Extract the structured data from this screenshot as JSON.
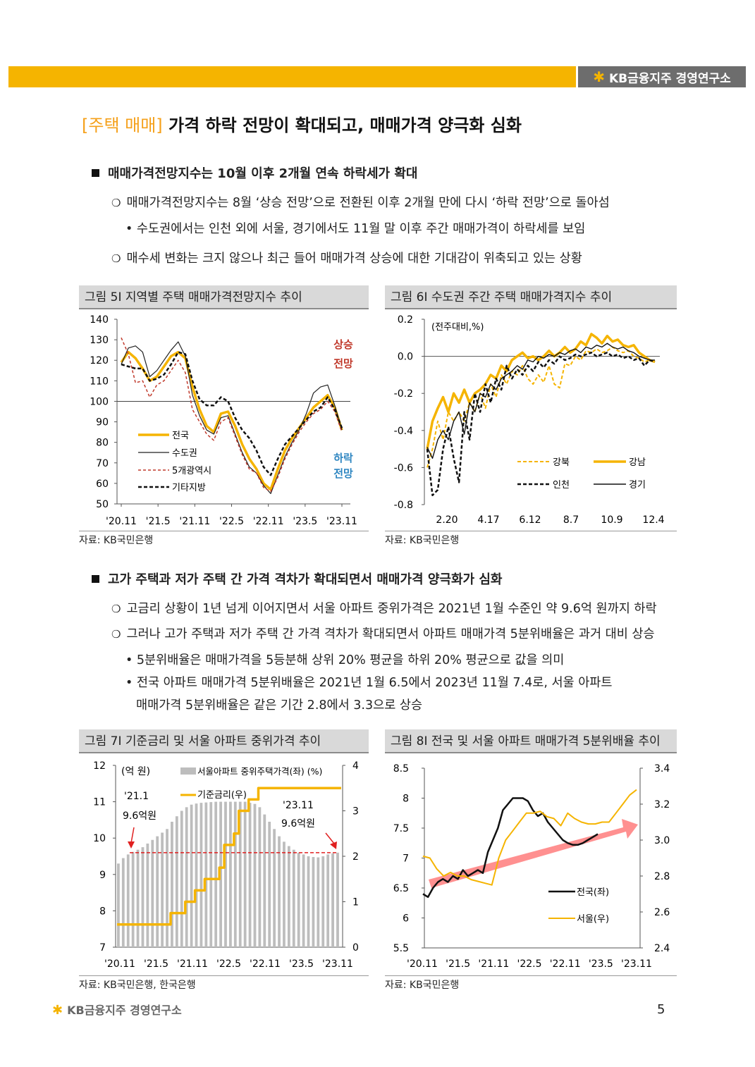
{
  "header": {
    "logo": "KB금융지주 경영연구소"
  },
  "title": {
    "tag": "[주택 매매]",
    "text": "가격 하락 전망이 확대되고, 매매가격 양극화 심화"
  },
  "section1": {
    "heading": "매매가격전망지수는 10월 이후 2개월 연속 하락세가 확대",
    "b1": "매매가격전망지수는 8월 ‘상승 전망’으로 전환된 이후 2개월 만에 다시 ‘하락 전망’으로 돌아섬",
    "b1_sub": "• 수도권에서는 인천 외에 서울, 경기에서도 11월 말 이후 주간 매매가격이 하락세를 보임",
    "b2": "매수세 변화는 크지 않으나 최근 들어 매매가격 상승에 대한 기대감이 위축되고 있는 상황"
  },
  "section2": {
    "heading": "고가 주택과 저가 주택 간 가격 격차가 확대되면서 매매가격 양극화가 심화",
    "b1": "고금리 상황이 1년 넘게 이어지면서 서울 아파트 중위가격은 2021년 1월 수준인 약 9.6억 원까지 하락",
    "b2": "그러나 고가 주택과 저가 주택 간 가격 격차가 확대되면서 아파트 매매가격 5분위배율은 과거 대비 상승",
    "sub1": "• 5분위배율은 매매가격을 5등분해 상위 20% 평균을 하위 20% 평균으로 값을 의미",
    "sub2": "• 전국 아파트 매매가격 5분위배율은 2021년 1월 6.5에서 2023년 11월 7.4로, 서울 아파트",
    "sub2b": "매매가격 5분위배율은 같은 기간 2.8에서 3.3으로 상승"
  },
  "figures": {
    "f5": {
      "caption": "그림 5I 지역별 주택 매매가격전망지수 추이",
      "source": "자료: KB국민은행"
    },
    "f6": {
      "caption": "그림 6I 수도권 주간 주택 매매가격지수 추이",
      "source": "자료: KB국민은행"
    },
    "f7": {
      "caption": "그림 7I 기준금리 및 서울 아파트 중위가격 추이",
      "source": "자료: KB국민은행, 한국은행"
    },
    "f8": {
      "caption": "그림 8I 전국 및 서울 아파트 매매가격 5분위배율 추이",
      "source": "자료: KB국민은행"
    }
  },
  "footer": {
    "logo": "KB금융지주 경영연구소",
    "page": "5"
  },
  "chart_data": [
    {
      "id": "f5",
      "type": "line",
      "title": "지역별 주택 매매가격전망지수 추이",
      "xlabels": [
        "'20.11",
        "'21.5",
        "'21.11",
        "'22.5",
        "'22.11",
        "'23.5",
        "'23.11"
      ],
      "ylim": [
        50,
        140
      ],
      "yticks": [
        50,
        60,
        70,
        80,
        90,
        100,
        110,
        120,
        130,
        140
      ],
      "refline": 100,
      "annotations": {
        "up1": "상승",
        "up2": "전망",
        "down1": "하락",
        "down2": "전망"
      },
      "colors": {
        "전국": "#f5b400",
        "수도권": "#222222",
        "5개광역시": "#c0392b",
        "기타지방": "#111111",
        "up": "#c0392b",
        "down": "#2e86c1"
      },
      "series": [
        {
          "name": "전국",
          "values": [
            119,
            124,
            121,
            116,
            110,
            112,
            117,
            122,
            124,
            121,
            107,
            96,
            88,
            85,
            94,
            95,
            88,
            79,
            72,
            67,
            60,
            57,
            67,
            76,
            82,
            87,
            92,
            97,
            100,
            103,
            97,
            86
          ]
        },
        {
          "name": "수도권",
          "values": [
            118,
            126,
            127,
            124,
            112,
            115,
            120,
            125,
            129,
            122,
            103,
            93,
            86,
            84,
            92,
            93,
            84,
            75,
            68,
            65,
            59,
            55,
            64,
            73,
            80,
            86,
            94,
            104,
            107,
            108,
            98,
            86
          ]
        },
        {
          "name": "5개광역시",
          "values": [
            131,
            123,
            109,
            110,
            102,
            108,
            110,
            115,
            120,
            114,
            96,
            90,
            84,
            81,
            90,
            92,
            83,
            74,
            67,
            65,
            58,
            56,
            63,
            72,
            79,
            85,
            90,
            94,
            96,
            100,
            95,
            85
          ]
        },
        {
          "name": "기타지방",
          "values": [
            118,
            117,
            116,
            116,
            110,
            111,
            113,
            118,
            124,
            123,
            110,
            101,
            98,
            98,
            102,
            100,
            92,
            86,
            82,
            76,
            68,
            64,
            72,
            79,
            83,
            87,
            91,
            95,
            97,
            102,
            96,
            87
          ]
        }
      ]
    },
    {
      "id": "f6",
      "type": "line",
      "title": "수도권 주간 주택 매매가격지수 추이",
      "unit": "(전주대비,%)",
      "xlabels": [
        "2.20",
        "4.17",
        "6.12",
        "8.7",
        "10.9",
        "12.4"
      ],
      "ylim": [
        -0.8,
        0.2
      ],
      "yticks": [
        "0.2",
        "0.0",
        "-0.2",
        "-0.4",
        "-0.6",
        "-0.8"
      ],
      "colors": {
        "강북": "#f5b400",
        "강남": "#f5b400",
        "인천": "#111111",
        "경기": "#111111"
      },
      "series": [
        {
          "name": "강북",
          "values": [
            -0.6,
            -0.5,
            -0.35,
            -0.45,
            -0.3,
            -0.35,
            -0.3,
            -0.35,
            -0.25,
            -0.3,
            -0.2,
            -0.28,
            -0.15,
            -0.22,
            -0.1,
            -0.15,
            -0.08,
            -0.1,
            -0.05,
            -0.12,
            -0.15,
            -0.1,
            -0.14,
            -0.05,
            -0.15,
            -0.17,
            -0.04,
            -0.05,
            0.0,
            -0.02,
            0.03,
            0.02,
            0.04,
            0.02,
            0.03,
            0.05,
            0.03,
            0.02,
            0.03,
            0.0,
            -0.01,
            -0.03,
            -0.02,
            -0.03
          ]
        },
        {
          "name": "강남",
          "values": [
            -0.5,
            -0.35,
            -0.28,
            -0.22,
            -0.3,
            -0.2,
            -0.25,
            -0.18,
            -0.25,
            -0.2,
            -0.18,
            -0.15,
            -0.1,
            -0.12,
            -0.05,
            -0.08,
            -0.02,
            0.0,
            0.02,
            -0.01,
            0.0,
            -0.02,
            0.0,
            0.03,
            0.0,
            0.02,
            0.05,
            0.02,
            0.04,
            0.08,
            0.06,
            0.12,
            0.1,
            0.07,
            0.11,
            0.08,
            0.09,
            0.06,
            0.05,
            0.06,
            0.02,
            0.0,
            -0.02,
            -0.03
          ]
        },
        {
          "name": "인천",
          "values": [
            -0.5,
            -0.75,
            -0.72,
            -0.5,
            -0.38,
            -0.55,
            -0.68,
            -0.3,
            -0.45,
            -0.2,
            -0.3,
            -0.15,
            -0.25,
            -0.12,
            -0.18,
            -0.05,
            -0.12,
            -0.07,
            -0.1,
            -0.05,
            -0.08,
            -0.03,
            -0.06,
            -0.02,
            -0.04,
            0.0,
            -0.02,
            -0.01,
            0.01,
            0.0,
            0.01,
            0.02,
            0.0,
            0.01,
            0.02,
            0.0,
            0.01,
            -0.01,
            0.0,
            -0.02,
            -0.01,
            -0.05,
            -0.02,
            -0.03
          ]
        },
        {
          "name": "경기",
          "values": [
            -0.49,
            -0.55,
            -0.45,
            -0.4,
            -0.45,
            -0.35,
            -0.3,
            -0.42,
            -0.25,
            -0.3,
            -0.2,
            -0.22,
            -0.15,
            -0.18,
            -0.12,
            -0.1,
            -0.08,
            -0.05,
            -0.07,
            -0.02,
            -0.03,
            0.0,
            -0.01,
            0.01,
            0.0,
            0.02,
            0.01,
            0.03,
            0.04,
            0.02,
            0.05,
            0.04,
            0.06,
            0.05,
            0.07,
            0.05,
            0.04,
            0.05,
            0.03,
            0.02,
            0.0,
            -0.01,
            -0.02,
            -0.02
          ]
        }
      ]
    },
    {
      "id": "f7",
      "type": "bar+line",
      "title": "기준금리 및 서울 아파트 중위가격 추이",
      "xlabels": [
        "'20.11",
        "'21.5",
        "'21.11",
        "'22.5",
        "'22.11",
        "'23.5",
        "'23.11"
      ],
      "yleft": {
        "label": "(억 원)",
        "lim": [
          7,
          12
        ],
        "ticks": [
          7,
          8,
          9,
          10,
          11,
          12
        ]
      },
      "yright": {
        "label": "(%)",
        "lim": [
          0,
          4
        ],
        "ticks": [
          0,
          1,
          2,
          3,
          4
        ]
      },
      "legend_bar": "서울아파트 중위주택가격(좌) (%)",
      "legend_line": "기준금리(우)",
      "annotation_left": {
        "date": "'21.1",
        "value": "9.6억원"
      },
      "annotation_right": {
        "date": "'23.11",
        "value": "9.6억원"
      },
      "refline": 9.6,
      "colors": {
        "bar": "#bdbdbd",
        "line": "#f5b400",
        "ref": "#e02020"
      },
      "series": [
        {
          "name": "서울아파트 중위주택가격",
          "axis": "left",
          "values": [
            9.3,
            9.45,
            9.55,
            9.62,
            9.68,
            9.75,
            9.85,
            9.95,
            10.05,
            10.15,
            10.25,
            10.45,
            10.6,
            10.75,
            10.85,
            10.92,
            10.95,
            10.97,
            10.98,
            10.99,
            11.0,
            11.0,
            11.0,
            11.0,
            11.0,
            11.0,
            11.0,
            10.97,
            10.94,
            10.85,
            10.65,
            10.45,
            10.25,
            10.05,
            9.9,
            9.78,
            9.68,
            9.6,
            9.55,
            9.5,
            9.48,
            9.47,
            9.5,
            9.55,
            9.58,
            9.6
          ]
        },
        {
          "name": "기준금리",
          "axis": "right",
          "values": [
            0.5,
            0.5,
            0.5,
            0.5,
            0.5,
            0.5,
            0.5,
            0.5,
            0.5,
            0.5,
            0.5,
            0.75,
            0.75,
            0.75,
            1.0,
            1.0,
            1.25,
            1.25,
            1.5,
            1.5,
            1.5,
            1.75,
            2.25,
            2.25,
            2.5,
            3.0,
            3.0,
            3.25,
            3.25,
            3.5,
            3.5,
            3.5,
            3.5,
            3.5,
            3.5,
            3.5,
            3.5,
            3.5,
            3.5,
            3.5,
            3.5,
            3.5,
            3.5,
            3.5,
            3.5,
            3.5
          ]
        }
      ]
    },
    {
      "id": "f8",
      "type": "line",
      "title": "전국 및 서울 아파트 매매가격 5분위배율 추이",
      "xlabels": [
        "'20.11",
        "'21.5",
        "'21.11",
        "'22.5",
        "'22.11",
        "'23.5",
        "'23.11"
      ],
      "yleft": {
        "lim": [
          5.5,
          8.5
        ],
        "ticks": [
          "5.5",
          "6",
          "6.5",
          "7",
          "7.5",
          "8",
          "8.5"
        ]
      },
      "yright": {
        "lim": [
          2.4,
          3.4
        ],
        "ticks": [
          "2.4",
          "2.6",
          "2.8",
          "3.0",
          "3.2",
          "3.4"
        ]
      },
      "colors": {
        "전국(좌)": "#111111",
        "서울(우)": "#f5b400",
        "arrow": "#ff6b6b"
      },
      "series": [
        {
          "name": "전국(좌)",
          "axis": "left",
          "values": [
            6.4,
            6.35,
            6.5,
            6.6,
            6.65,
            6.6,
            6.7,
            6.65,
            6.8,
            6.7,
            6.75,
            6.8,
            6.75,
            7.1,
            7.3,
            7.5,
            7.8,
            7.9,
            8.0,
            8.0,
            8.0,
            7.95,
            7.8,
            7.7,
            7.75,
            7.6,
            7.5,
            7.4,
            7.3,
            7.25,
            7.22,
            7.22,
            7.25,
            7.3,
            7.35,
            7.4
          ]
        },
        {
          "name": "서울(우)",
          "axis": "right",
          "values": [
            2.91,
            2.9,
            2.84,
            2.8,
            2.82,
            2.8,
            2.8,
            2.78,
            2.77,
            2.76,
            2.75,
            2.9,
            3.0,
            3.05,
            3.1,
            3.15,
            3.15,
            3.16,
            3.13,
            3.12,
            3.08,
            3.15,
            3.12,
            3.1,
            3.09,
            3.09,
            3.1,
            3.1,
            3.15,
            3.2,
            3.25,
            3.28
          ]
        }
      ]
    }
  ]
}
